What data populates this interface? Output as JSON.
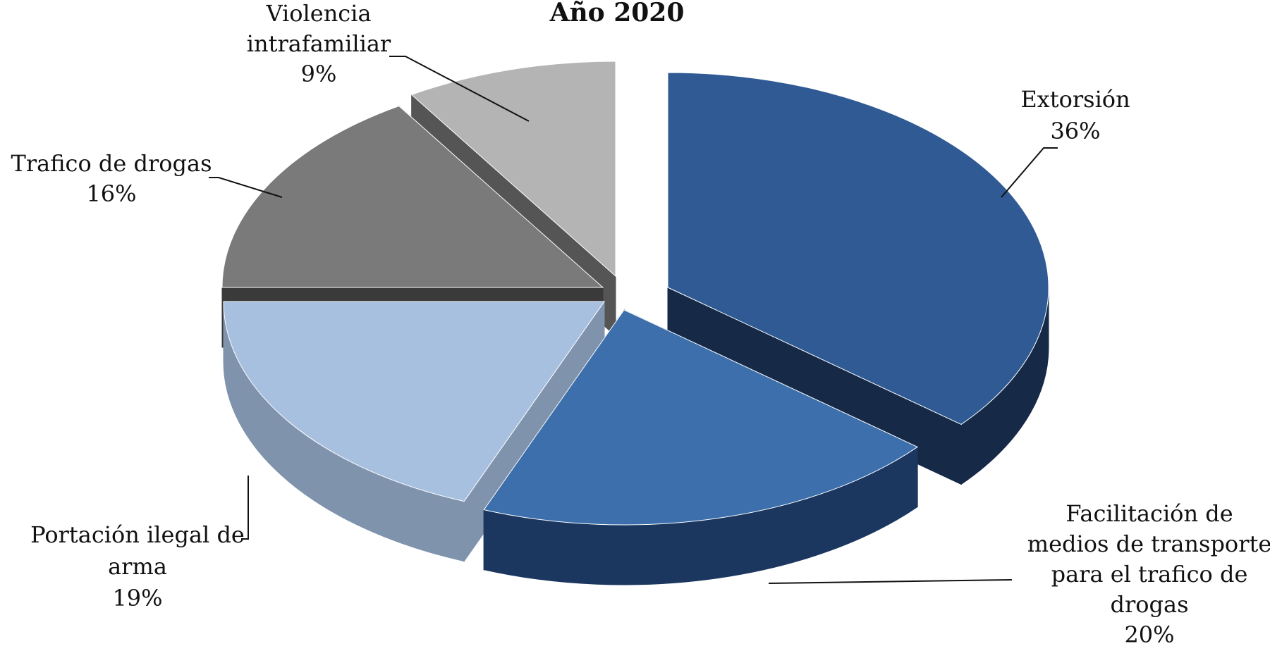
{
  "chart_data": {
    "type": "pie",
    "title": "Año 2020",
    "slices": [
      {
        "id": "extorsion",
        "lines": [
          "Extorsión"
        ],
        "pct": "36%",
        "value": 36,
        "top": "#2f5a93",
        "side": "#162a48"
      },
      {
        "id": "facilitacion",
        "lines": [
          "Facilitación de",
          "medios de transporte",
          "para el trafico de",
          "drogas"
        ],
        "pct": "20%",
        "value": 20,
        "top": "#3c6fac",
        "side": "#1b3760"
      },
      {
        "id": "portacion",
        "lines": [
          "Portación ilegal de",
          "arma"
        ],
        "pct": "19%",
        "value": 19,
        "top": "#a8c0df",
        "side": "#7f93ad"
      },
      {
        "id": "trafico",
        "lines": [
          "Trafico de drogas"
        ],
        "pct": "16%",
        "value": 16,
        "top": "#7a7a7a",
        "side": "#3a3a3a"
      },
      {
        "id": "violencia",
        "lines": [
          "Violencia",
          "intrafamiliar"
        ],
        "pct": "9%",
        "value": 9,
        "top": "#b4b4b4",
        "side": "#555555"
      }
    ]
  }
}
